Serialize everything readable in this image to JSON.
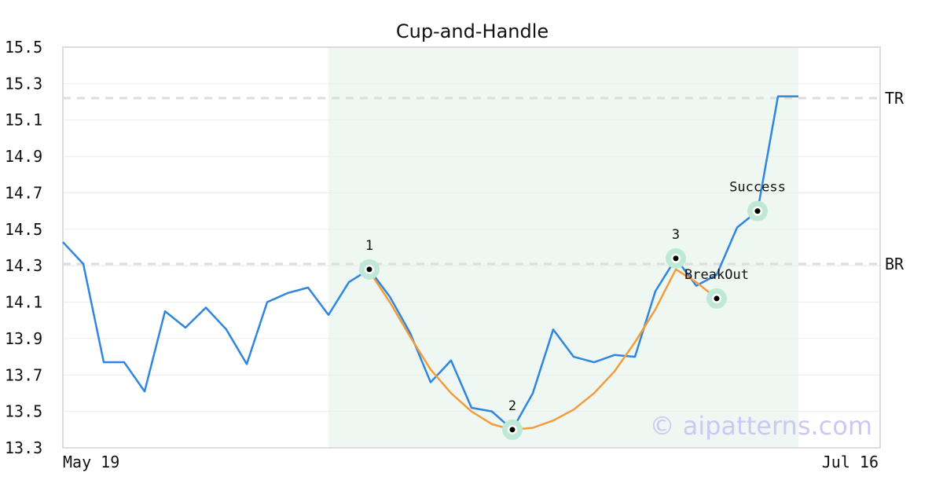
{
  "chart_data": {
    "type": "line",
    "title": "Cup-and-Handle",
    "xlabel": "",
    "ylabel": "",
    "ylim": [
      13.3,
      15.5
    ],
    "yticks": [
      "13.3",
      "13.5",
      "13.7",
      "13.9",
      "14.1",
      "14.3",
      "14.5",
      "14.7",
      "14.9",
      "15.1",
      "15.3",
      "15.5"
    ],
    "x_tick_labels": [
      "May 19",
      "Jul 16"
    ],
    "grid": true,
    "pattern_region": {
      "start_index": 13,
      "end_index": 36
    },
    "series": [
      {
        "values": [
          14.43,
          14.31,
          13.77,
          13.77,
          13.61,
          14.05,
          13.96,
          14.07,
          13.95,
          13.76,
          14.1,
          14.15,
          14.18,
          14.03,
          14.21,
          14.28,
          14.13,
          13.93,
          13.66,
          13.78,
          13.52,
          13.5,
          13.4,
          13.6,
          13.95,
          13.8,
          13.77,
          13.81,
          13.8,
          14.16,
          14.34,
          14.19,
          14.25,
          14.51,
          14.6,
          15.23,
          15.23
        ],
        "color": "#2e86de"
      },
      {
        "start_index": 15,
        "values": [
          14.27,
          14.1,
          13.91,
          13.73,
          13.6,
          13.5,
          13.43,
          13.4,
          13.41,
          13.45,
          13.51,
          13.6,
          13.72,
          13.88,
          14.06,
          14.28,
          14.21,
          14.12
        ],
        "color": "#f39c3a"
      }
    ],
    "reference_lines": [
      {
        "label": "TR",
        "value": 15.22
      },
      {
        "label": "BR",
        "value": 14.31
      }
    ],
    "annotations": [
      {
        "label": "1",
        "index": 15,
        "value": 14.28,
        "label_pos": "above"
      },
      {
        "label": "2",
        "index": 22,
        "value": 13.4,
        "label_pos": "above"
      },
      {
        "label": "3",
        "index": 30,
        "value": 14.34,
        "label_pos": "above"
      },
      {
        "label": "BreakOut",
        "index": 32,
        "value": 14.12,
        "label_pos": "above"
      },
      {
        "label": "Success",
        "index": 34,
        "value": 14.6,
        "label_pos": "above"
      }
    ],
    "watermark": "© aipatterns.com",
    "colors": {
      "price": "#2e86de",
      "cup": "#f39c3a",
      "region": "#eff7f3",
      "marker_halo": "#bfe8d6",
      "reference": "#dddddd",
      "grid": "#ebebeb",
      "axis": "#dddddd"
    }
  }
}
